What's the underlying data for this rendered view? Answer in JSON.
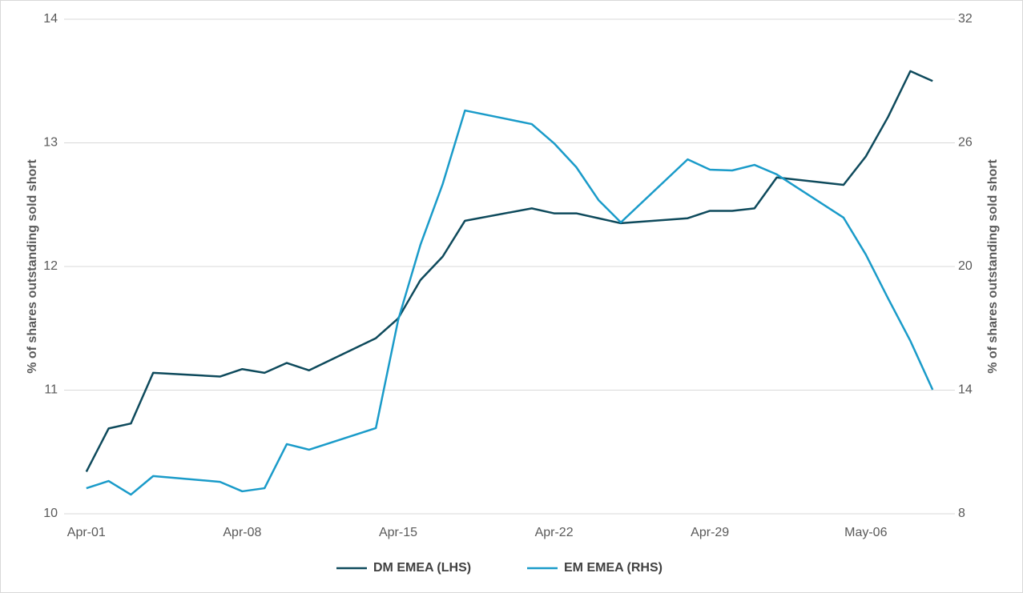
{
  "chart_data": {
    "type": "line",
    "y_label": "% of shares outstanding sold short",
    "y2_label": "% of shares outstanding sold short",
    "x": [
      "Apr-01",
      "Apr-02",
      "Apr-03",
      "Apr-04",
      "Apr-07",
      "Apr-08",
      "Apr-09",
      "Apr-10",
      "Apr-11",
      "Apr-14",
      "Apr-15",
      "Apr-16",
      "Apr-17",
      "Apr-18",
      "Apr-21",
      "Apr-22",
      "Apr-23",
      "Apr-24",
      "Apr-25",
      "Apr-28",
      "Apr-29",
      "Apr-30",
      "May-01",
      "May-02",
      "May-05",
      "May-06",
      "May-07",
      "May-08",
      "May-09"
    ],
    "xlim": [
      "Mar-31",
      "May-10"
    ],
    "xticks": [
      "Apr-01",
      "Apr-08",
      "Apr-15",
      "Apr-22",
      "Apr-29",
      "May-06"
    ],
    "ylim": [
      10,
      14
    ],
    "yticks": [
      10,
      11,
      12,
      13,
      14
    ],
    "y2lim": [
      8,
      32
    ],
    "y2ticks": [
      8,
      14,
      20,
      26,
      32
    ],
    "grid": true,
    "legend": "bottom",
    "series": [
      {
        "name": "DM EMEA (LHS)",
        "color": "#0e4a5c",
        "values": [
          10.34,
          10.69,
          10.73,
          11.14,
          11.11,
          11.17,
          11.14,
          11.22,
          11.16,
          11.42,
          11.58,
          11.89,
          12.08,
          12.37,
          12.47,
          12.43,
          12.43,
          12.39,
          12.35,
          12.39,
          12.45,
          12.45,
          12.47,
          12.72,
          12.66,
          12.89,
          13.21,
          13.58,
          13.5
        ]
      },
      {
        "name": "EM EMEA (RHS)",
        "color": "#1a9bc9",
        "axis": "y2",
        "values": [
          9.24,
          9.59,
          8.93,
          9.83,
          9.55,
          9.09,
          9.24,
          11.38,
          11.11,
          12.16,
          17.4,
          21.05,
          24.0,
          27.57,
          26.91,
          25.98,
          24.82,
          23.22,
          22.14,
          25.2,
          24.7,
          24.66,
          24.93,
          24.47,
          22.37,
          20.58,
          18.45,
          16.39,
          14.02
        ]
      }
    ]
  }
}
